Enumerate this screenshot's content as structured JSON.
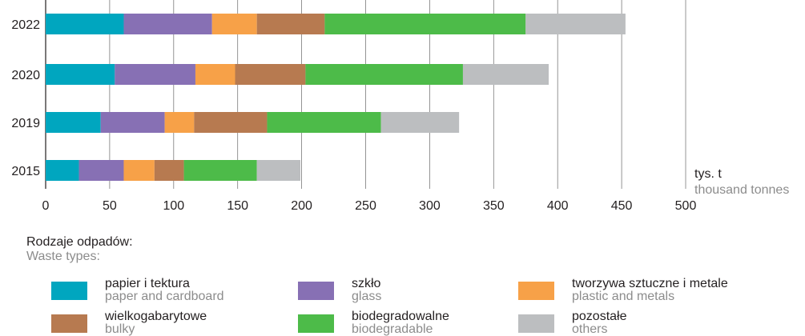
{
  "chart_data": {
    "type": "bar",
    "orientation": "horizontal",
    "stacked": true,
    "categories": [
      "2022",
      "2020",
      "2019",
      "2015"
    ],
    "series": [
      {
        "name": "papier i tektura",
        "name_en": "paper and cardboard",
        "color": "#00a6bf",
        "values": [
          61,
          54,
          43,
          26
        ]
      },
      {
        "name": "szkło",
        "name_en": "glass",
        "color": "#8770b4",
        "values": [
          69,
          63,
          50,
          35
        ]
      },
      {
        "name": "tworzywa sztuczne i metale",
        "name_en": "plastic and metals",
        "color": "#f7a148",
        "values": [
          35,
          31,
          23,
          24
        ]
      },
      {
        "name": "wielkogabarytowe",
        "name_en": "bulky",
        "color": "#b77a50",
        "values": [
          53,
          55,
          57,
          23
        ]
      },
      {
        "name": "biodegradowalne",
        "name_en": "biodegradable",
        "color": "#4dbb49",
        "values": [
          157,
          123,
          89,
          57
        ]
      },
      {
        "name": "pozostałe",
        "name_en": "others",
        "color": "#bcbec0",
        "values": [
          78,
          67,
          61,
          34
        ]
      }
    ],
    "xlim": [
      0,
      500
    ],
    "xticks": [
      "0",
      "50",
      "100",
      "150",
      "200",
      "250",
      "300",
      "350",
      "400",
      "450",
      "500"
    ],
    "xlabel": "tys. t",
    "xlabel_en": "thousand tonnes",
    "grid": "vertical",
    "legend_position": "bottom"
  },
  "legend": {
    "title": "Rodzaje odpadów:",
    "title_en": "Waste types:"
  }
}
